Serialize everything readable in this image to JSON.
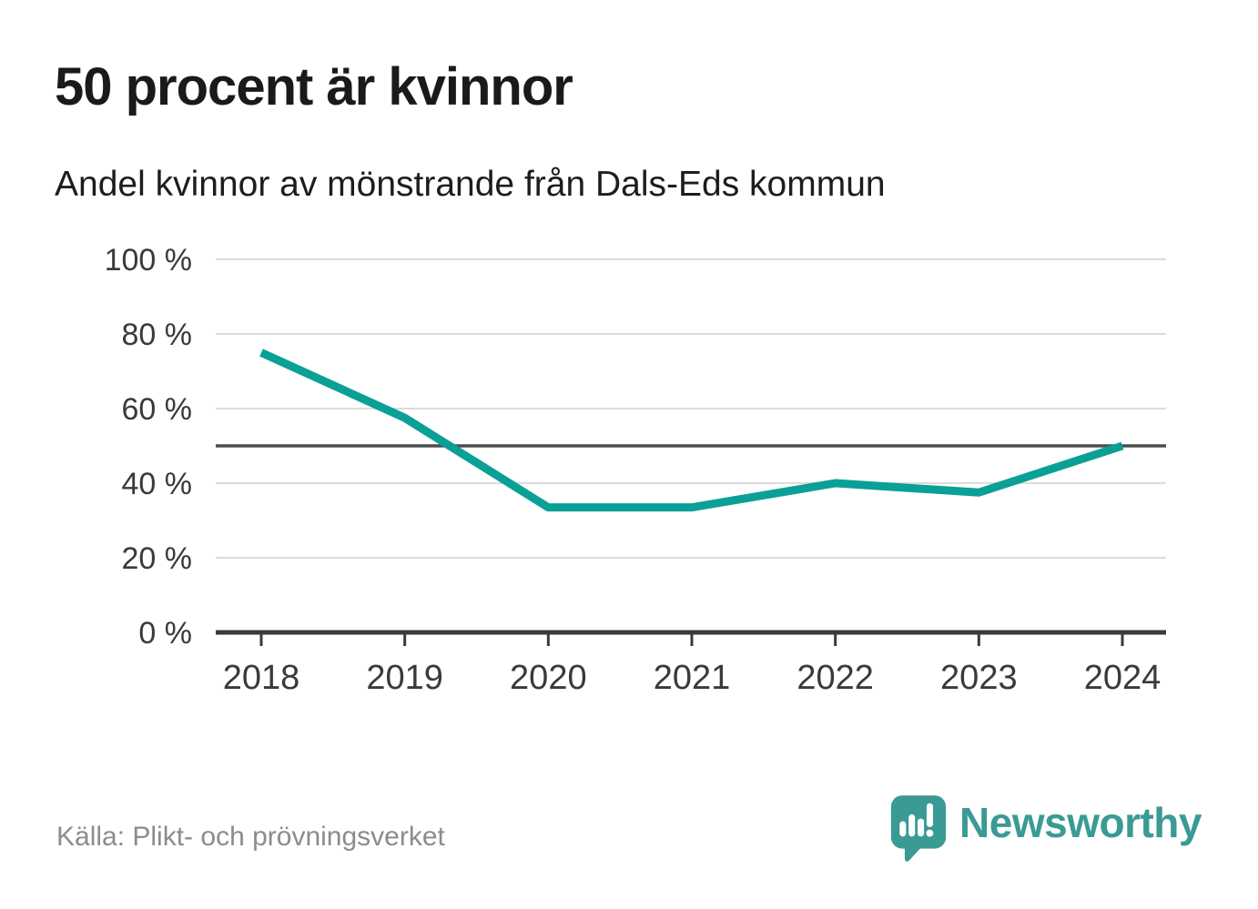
{
  "header": {
    "title": "50 procent är kvinnor",
    "subtitle": "Andel kvinnor av mönstrande från Dals-Eds kommun"
  },
  "chart_data": {
    "type": "line",
    "categories": [
      "2018",
      "2019",
      "2020",
      "2021",
      "2022",
      "2023",
      "2024"
    ],
    "series": [
      {
        "name": "Andel kvinnor av mönstrande",
        "values": [
          75,
          57.5,
          33.5,
          33.5,
          40,
          37.5,
          50
        ]
      }
    ],
    "title": "50 procent är kvinnor",
    "subtitle": "Andel kvinnor av mönstrande från Dals-Eds kommun",
    "xlabel": "",
    "ylabel": "",
    "ylim": [
      0,
      100
    ],
    "yticks": [
      0,
      20,
      40,
      60,
      80,
      100
    ],
    "ytick_labels": [
      "0 %",
      "20 %",
      "40 %",
      "60 %",
      "80 %",
      "100 %"
    ],
    "reference_line": 50,
    "grid": true,
    "legend": "none",
    "colors": {
      "line": "#0aa096",
      "gridline": "#dcdcdc",
      "reference_line": "#4d4d4d",
      "axis": "#3a3a3a",
      "tick_label": "#3a3a3a"
    }
  },
  "footer": {
    "source": "Källa: Plikt- och prövningsverket",
    "brand": "Newsworthy",
    "brand_color": "#3a9a94"
  }
}
